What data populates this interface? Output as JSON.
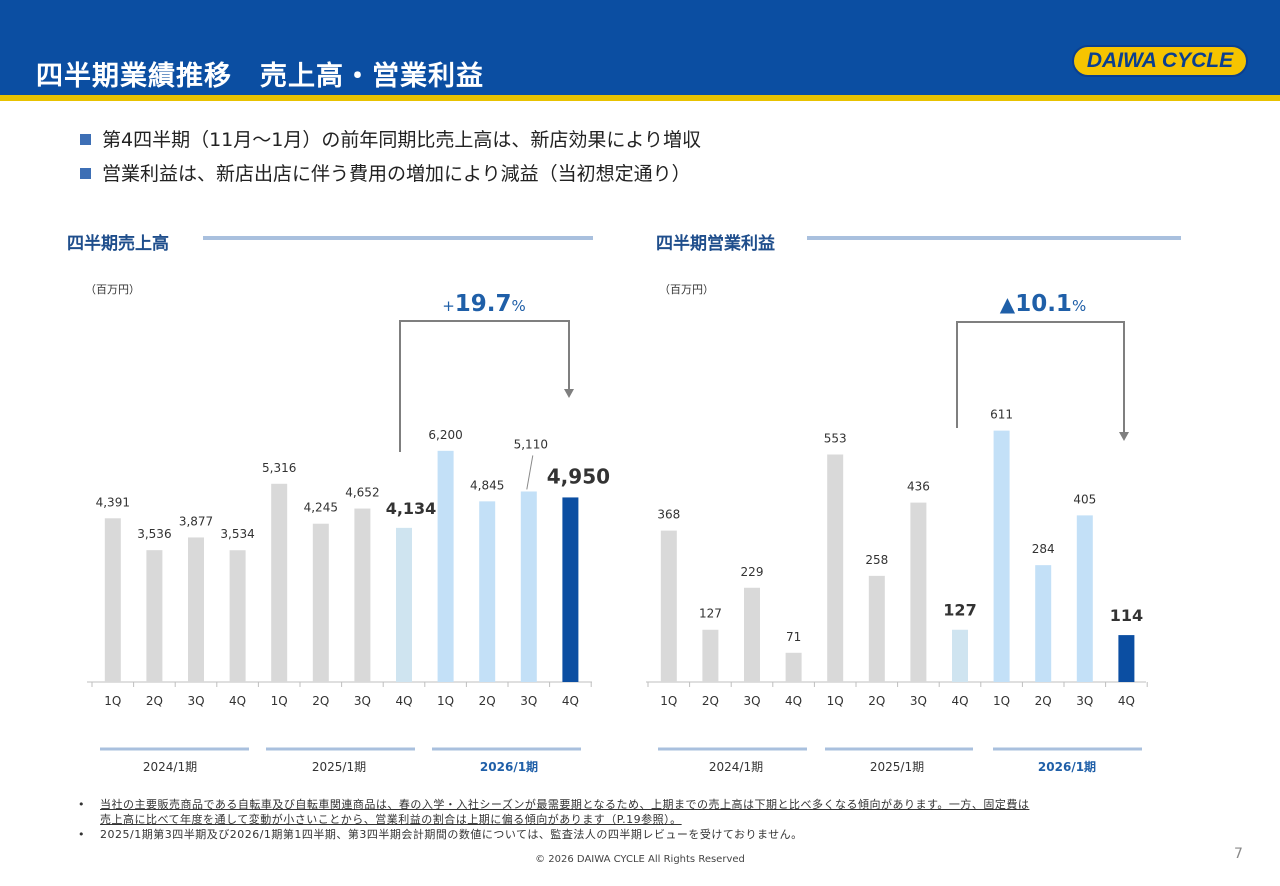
{
  "header": {
    "title": "四半期業績推移　売上高・営業利益",
    "logo_text": "DAIWA CYCLE"
  },
  "bullets": [
    "第4四半期（11月～1月）の前年同期比売上高は、新店効果により増収",
    "営業利益は、新店出店に伴う費用の増加により減益（当初想定通り）"
  ],
  "colors": {
    "header_bg": "#0b4ea2",
    "accent_gold": "#e8c200",
    "bar_past": "#d9d9d9",
    "bar_prev_q4": "#cfe4f0",
    "bar_current": "#c3e0f7",
    "bar_highlight": "#0b4ea2",
    "growth_text": "#1f5fa8"
  },
  "chart_data": [
    {
      "type": "bar",
      "title": "四半期売上高",
      "unit": "（百万円）",
      "categories": [
        "1Q",
        "2Q",
        "3Q",
        "4Q",
        "1Q",
        "2Q",
        "3Q",
        "4Q",
        "1Q",
        "2Q",
        "3Q",
        "4Q"
      ],
      "values": [
        4391,
        3536,
        3877,
        3534,
        5316,
        4245,
        4652,
        4134,
        6200,
        4845,
        5110,
        4950
      ],
      "value_labels": [
        "4,391",
        "3,536",
        "3,877",
        "3,534",
        "5,316",
        "4,245",
        "4,652",
        "4,134",
        "6,200",
        "4,845",
        "5,110",
        "4,950"
      ],
      "bold_indices": [
        7,
        11
      ],
      "groups": [
        "2024/1期",
        "2025/1期",
        "2026/1期"
      ],
      "comparison": {
        "sign": "+",
        "value": "19.7",
        "suffix": "%"
      },
      "ylim": [
        0,
        7000
      ]
    },
    {
      "type": "bar",
      "title": "四半期営業利益",
      "unit": "（百万円）",
      "categories": [
        "1Q",
        "2Q",
        "3Q",
        "4Q",
        "1Q",
        "2Q",
        "3Q",
        "4Q",
        "1Q",
        "2Q",
        "3Q",
        "4Q"
      ],
      "values": [
        368,
        127,
        229,
        71,
        553,
        258,
        436,
        127,
        611,
        284,
        405,
        114
      ],
      "value_labels": [
        "368",
        "127",
        "229",
        "71",
        "553",
        "258",
        "436",
        "127",
        "611",
        "284",
        "405",
        "114"
      ],
      "bold_indices": [
        7,
        11
      ],
      "groups": [
        "2024/1期",
        "2025/1期",
        "2026/1期"
      ],
      "comparison": {
        "sign": "▲",
        "value": "10.1",
        "suffix": "%"
      },
      "ylim": [
        0,
        700
      ]
    }
  ],
  "footnotes": [
    "当社の主要販売商品である自転車及び自転車関連商品は、春の入学・入社シーズンが最需要期となるため、上期までの売上高は下期と比べ多くなる傾向があります。一方、固定費は",
    "売上高に比べて年度を通して変動が小さいことから、営業利益の割合は上期に偏る傾向があります（P.19参照）。",
    "2025/1期第3四半期及び2026/1期第1四半期、第3四半期会計期間の数値については、監査法人の四半期レビューを受けておりません。"
  ],
  "copyright": "© 2026 DAIWA CYCLE All Rights Reserved",
  "page_number": "7"
}
